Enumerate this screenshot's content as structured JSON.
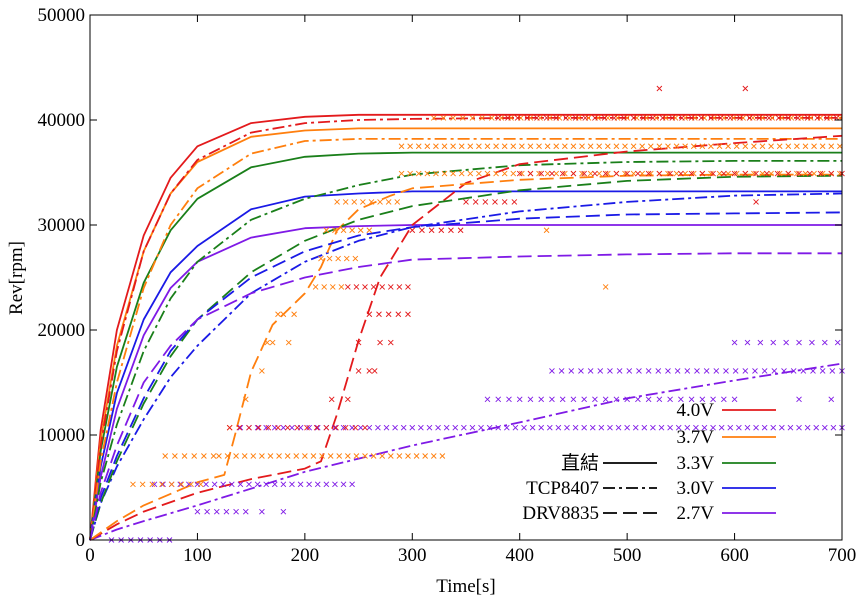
{
  "chart_data": {
    "type": "line",
    "title": "",
    "xlabel": "Time[s]",
    "ylabel": "Rev[rpm]",
    "xlim": [
      0,
      700
    ],
    "ylim": [
      0,
      50000
    ],
    "xticks": [
      0,
      100,
      200,
      300,
      400,
      500,
      600,
      700
    ],
    "yticks": [
      0,
      10000,
      20000,
      30000,
      40000,
      50000
    ],
    "grid": false,
    "voltage_legend": [
      {
        "label": "4.0V",
        "color": "#e31a1c"
      },
      {
        "label": "3.7V",
        "color": "#ff7f0e"
      },
      {
        "label": "3.3V",
        "color": "#1a7f1a"
      },
      {
        "label": "3.0V",
        "color": "#1a1ae6"
      },
      {
        "label": "2.7V",
        "color": "#7f1ae6"
      }
    ],
    "style_legend": [
      {
        "label": "直結",
        "dash": "solid"
      },
      {
        "label": "TCP8407",
        "dash": "dashdot"
      },
      {
        "label": "DRV8835",
        "dash": "dashed"
      }
    ],
    "series": [
      {
        "name": "直結 4.0V",
        "color": "#e31a1c",
        "dash": "solid",
        "x": [
          0,
          10,
          25,
          50,
          75,
          100,
          150,
          200,
          250,
          300,
          400,
          500,
          600,
          700
        ],
        "y": [
          0,
          10500,
          20000,
          29000,
          34500,
          37500,
          39700,
          40300,
          40500,
          40500,
          40500,
          40500,
          40500,
          40500
        ]
      },
      {
        "name": "直結 3.7V",
        "color": "#ff7f0e",
        "dash": "solid",
        "x": [
          0,
          10,
          25,
          50,
          75,
          100,
          150,
          200,
          250,
          300,
          400,
          500,
          600,
          700
        ],
        "y": [
          0,
          9500,
          18500,
          27500,
          33000,
          36000,
          38400,
          39000,
          39200,
          39200,
          39200,
          39200,
          39200,
          39200
        ]
      },
      {
        "name": "直結 3.3V",
        "color": "#1a7f1a",
        "dash": "solid",
        "x": [
          0,
          10,
          25,
          50,
          75,
          100,
          150,
          200,
          250,
          300,
          400,
          500,
          600,
          700
        ],
        "y": [
          0,
          8500,
          16500,
          24500,
          29500,
          32500,
          35500,
          36500,
          36800,
          36900,
          36900,
          36900,
          36900,
          36900
        ]
      },
      {
        "name": "直結 3.0V",
        "color": "#1a1ae6",
        "dash": "solid",
        "x": [
          0,
          10,
          25,
          50,
          75,
          100,
          150,
          200,
          250,
          300,
          400,
          500,
          600,
          700
        ],
        "y": [
          0,
          7000,
          14000,
          21000,
          25500,
          28000,
          31500,
          32700,
          33000,
          33200,
          33200,
          33200,
          33200,
          33200
        ]
      },
      {
        "name": "直結 2.7V",
        "color": "#7f1ae6",
        "dash": "solid",
        "x": [
          0,
          10,
          25,
          50,
          75,
          100,
          150,
          200,
          250,
          300,
          400,
          500,
          600,
          700
        ],
        "y": [
          0,
          6000,
          12500,
          19500,
          24000,
          26500,
          28800,
          29700,
          29900,
          30000,
          30000,
          30000,
          30000,
          30000
        ]
      },
      {
        "name": "TCP8407 4.0V",
        "color": "#e31a1c",
        "dash": "dashdot",
        "x": [
          0,
          10,
          25,
          50,
          75,
          100,
          150,
          200,
          250,
          300,
          400,
          500,
          600,
          700
        ],
        "y": [
          0,
          9000,
          18000,
          27500,
          33000,
          36200,
          38800,
          39700,
          40000,
          40100,
          40200,
          40200,
          40200,
          40200
        ]
      },
      {
        "name": "TCP8407 3.7V",
        "color": "#ff7f0e",
        "dash": "dashdot",
        "x": [
          0,
          10,
          25,
          50,
          75,
          100,
          150,
          200,
          250,
          300,
          400,
          500,
          600,
          700
        ],
        "y": [
          0,
          7500,
          15000,
          24000,
          30000,
          33500,
          36800,
          38000,
          38200,
          38200,
          38200,
          38200,
          38200,
          38200
        ]
      },
      {
        "name": "TCP8407 3.3V",
        "color": "#1a7f1a",
        "dash": "dashdot",
        "x": [
          0,
          10,
          25,
          50,
          75,
          100,
          150,
          200,
          250,
          300,
          400,
          500,
          600,
          700
        ],
        "y": [
          0,
          5500,
          11000,
          18000,
          23000,
          26500,
          30500,
          32500,
          33800,
          34800,
          35700,
          36000,
          36100,
          36100
        ]
      },
      {
        "name": "TCP8407 3.0V",
        "color": "#1a1ae6",
        "dash": "dashdot",
        "x": [
          0,
          10,
          25,
          50,
          75,
          100,
          150,
          200,
          250,
          300,
          400,
          500,
          600,
          700
        ],
        "y": [
          0,
          3500,
          7000,
          11500,
          15500,
          18500,
          23500,
          26500,
          28500,
          29800,
          31300,
          32200,
          32800,
          33000
        ]
      },
      {
        "name": "TCP8407 2.7V",
        "color": "#7f1ae6",
        "dash": "dashdot",
        "x": [
          0,
          25,
          50,
          100,
          200,
          300,
          400,
          500,
          600,
          700
        ],
        "y": [
          0,
          1000,
          1800,
          3300,
          6500,
          9000,
          11200,
          13500,
          15200,
          16800
        ]
      },
      {
        "name": "DRV8835 4.0V",
        "color": "#e31a1c",
        "dash": "dashed",
        "x": [
          0,
          25,
          50,
          100,
          150,
          200,
          215,
          230,
          250,
          270,
          300,
          350,
          400,
          500,
          600,
          700
        ],
        "y": [
          0,
          1500,
          2700,
          4500,
          5800,
          6800,
          7500,
          12000,
          19000,
          25000,
          30000,
          34000,
          35800,
          37000,
          37800,
          38500
        ]
      },
      {
        "name": "DRV8835 3.7V",
        "color": "#ff7f0e",
        "dash": "dashed",
        "x": [
          0,
          25,
          50,
          100,
          125,
          135,
          150,
          170,
          200,
          215,
          230,
          250,
          280,
          300,
          400,
          500,
          600,
          700
        ],
        "y": [
          0,
          1800,
          3300,
          5500,
          6200,
          10000,
          16000,
          20500,
          23500,
          26000,
          29500,
          31500,
          32800,
          33500,
          34300,
          34700,
          34800,
          34800
        ]
      },
      {
        "name": "DRV8835 3.3V",
        "color": "#1a7f1a",
        "dash": "dashed",
        "x": [
          0,
          10,
          25,
          50,
          75,
          100,
          150,
          200,
          250,
          300,
          400,
          500,
          600,
          700
        ],
        "y": [
          0,
          3500,
          7500,
          13000,
          17500,
          21000,
          25500,
          28500,
          30500,
          31800,
          33300,
          34200,
          34600,
          34700
        ]
      },
      {
        "name": "DRV8835 3.0V",
        "color": "#1a1ae6",
        "dash": "dashed",
        "x": [
          0,
          10,
          25,
          50,
          75,
          100,
          150,
          200,
          250,
          300,
          400,
          500,
          600,
          700
        ],
        "y": [
          0,
          4000,
          8000,
          13500,
          18000,
          21000,
          25000,
          27500,
          29000,
          29800,
          30600,
          31000,
          31100,
          31200
        ]
      },
      {
        "name": "DRV8835 2.7V",
        "color": "#7f1ae6",
        "dash": "dashed",
        "x": [
          0,
          10,
          25,
          50,
          75,
          100,
          150,
          200,
          250,
          300,
          400,
          500,
          600,
          700
        ],
        "y": [
          0,
          4500,
          9000,
          15000,
          18500,
          21000,
          23500,
          25000,
          26000,
          26700,
          27000,
          27200,
          27300,
          27300
        ]
      }
    ]
  }
}
